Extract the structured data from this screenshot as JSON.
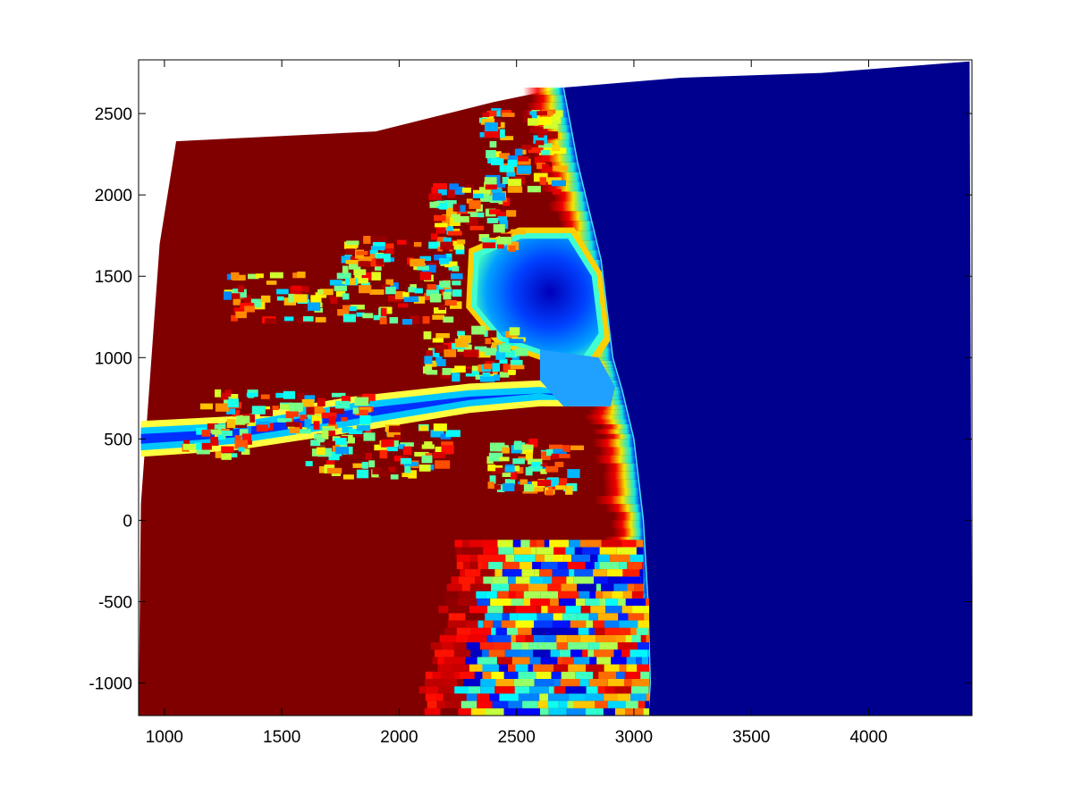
{
  "chart_data": {
    "type": "heatmap",
    "title": "",
    "xlabel": "",
    "ylabel": "",
    "xlim": [
      890,
      4440
    ],
    "ylim": [
      -1200,
      2830
    ],
    "grid": false,
    "colorbar": false,
    "colormap": "jet",
    "colormap_stops": [
      "#00008f",
      "#0000ff",
      "#00ffff",
      "#ffff00",
      "#ff0000",
      "#800000"
    ],
    "x_ticks": [
      1000,
      1500,
      2000,
      2500,
      3000,
      3500,
      4000
    ],
    "y_ticks": [
      -1000,
      -500,
      0,
      500,
      1000,
      1500,
      2000,
      2500
    ],
    "x_tick_labels": [
      "1000",
      "1500",
      "2000",
      "2500",
      "3000",
      "3500",
      "4000"
    ],
    "y_tick_labels": [
      "-1000",
      "-500",
      "0",
      "500",
      "1000",
      "1500",
      "2000",
      "2500"
    ],
    "regions": {
      "land_color": "#800000",
      "ocean_color": "#00008f",
      "grid_top_edge": [
        [
          1050,
          2330
        ],
        [
          1900,
          2390
        ],
        [
          2400,
          2570
        ],
        [
          2700,
          2660
        ],
        [
          3200,
          2720
        ],
        [
          3800,
          2750
        ],
        [
          4430,
          2820
        ]
      ],
      "grid_left_edge": [
        [
          1050,
          2330
        ],
        [
          980,
          1700
        ],
        [
          900,
          100
        ],
        [
          890,
          -1200
        ]
      ],
      "grid_right_edge": [
        [
          4430,
          2820
        ],
        [
          4440,
          -1200
        ]
      ],
      "shoreline": [
        [
          2700,
          2660
        ],
        [
          2760,
          2200
        ],
        [
          2860,
          1600
        ],
        [
          2910,
          1000
        ],
        [
          2950,
          800
        ],
        [
          3000,
          500
        ],
        [
          3040,
          0
        ],
        [
          3060,
          -500
        ],
        [
          3070,
          -1000
        ],
        [
          3060,
          -1200
        ]
      ],
      "bay": [
        [
          2340,
          1620
        ],
        [
          2520,
          1730
        ],
        [
          2720,
          1730
        ],
        [
          2820,
          1500
        ],
        [
          2850,
          1150
        ],
        [
          2780,
          1000
        ],
        [
          2620,
          1040
        ],
        [
          2440,
          1130
        ],
        [
          2330,
          1320
        ]
      ],
      "channel": {
        "upper_edge": [
          [
            900,
            610
          ],
          [
            1300,
            640
          ],
          [
            1800,
            760
          ],
          [
            2300,
            840
          ],
          [
            2600,
            860
          ],
          [
            2900,
            800
          ]
        ],
        "lower_edge": [
          [
            2900,
            700
          ],
          [
            2600,
            700
          ],
          [
            2300,
            660
          ],
          [
            1800,
            540
          ],
          [
            1300,
            430
          ],
          [
            900,
            390
          ]
        ]
      },
      "south_banded_zone": [
        [
          2230,
          -200
        ],
        [
          2700,
          -220
        ],
        [
          3040,
          -100
        ],
        [
          3080,
          -1200
        ],
        [
          2050,
          -1200
        ],
        [
          2150,
          -700
        ]
      ]
    }
  }
}
